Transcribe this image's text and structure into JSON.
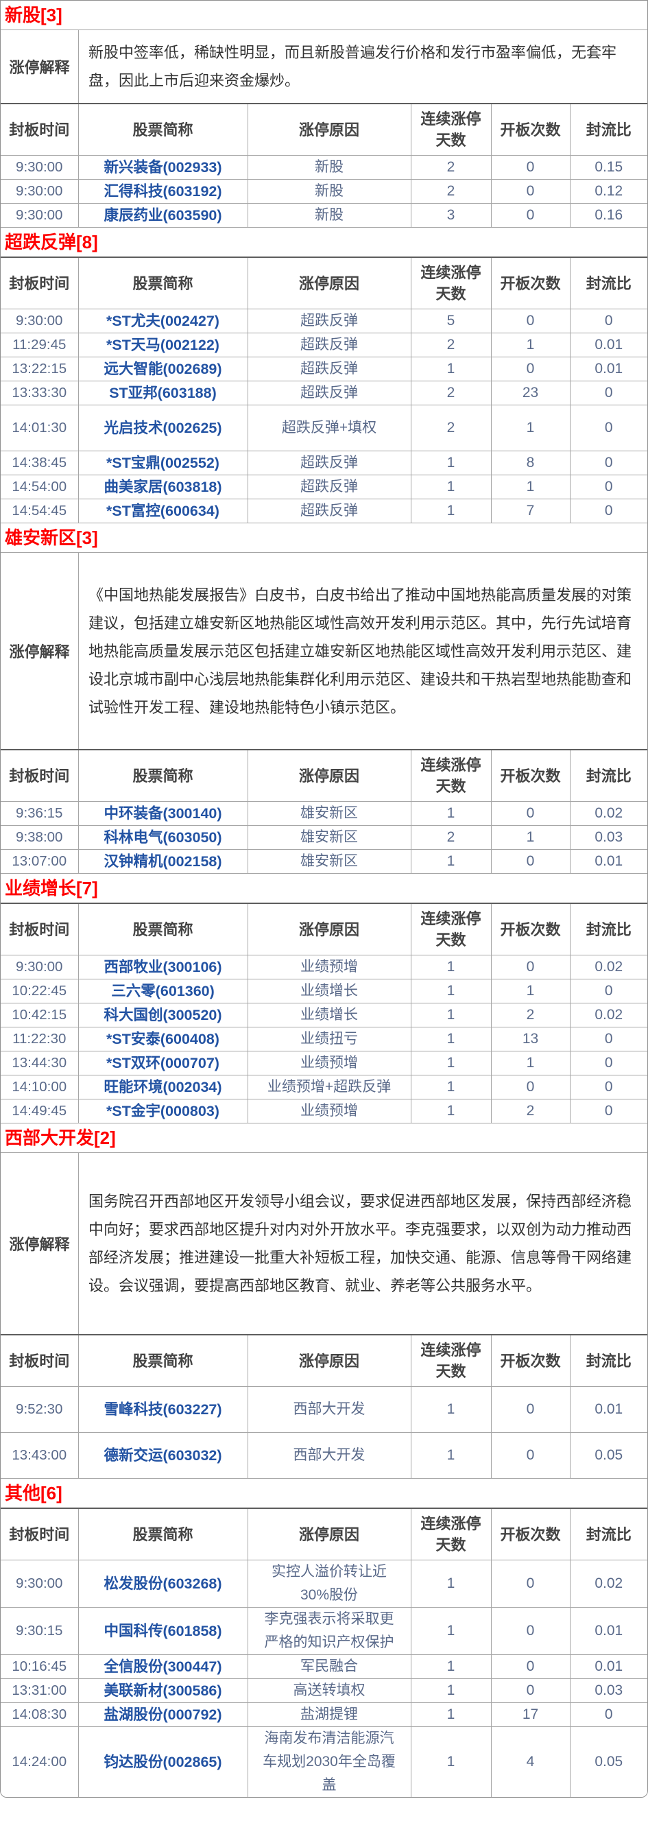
{
  "table": {
    "explanation_label": "涨停解释",
    "columns": [
      "封板时间",
      "股票简称",
      "涨停原因",
      "连续涨停天数",
      "开板次数",
      "封流比"
    ]
  },
  "colors": {
    "section_title_red": "#fe0000",
    "stock_link_blue": "#2353a3",
    "data_text_slate": "#5a6a8a",
    "header_text_gray": "#444444",
    "grid_line_gray": "#a6a6a6"
  },
  "sections": [
    {
      "title": "新股[3]",
      "explanation": "新股中签率低，稀缺性明显，而且新股普遍发行价格和发行市盈率偏低，无套牢盘，因此上市后迎来资金爆炒。",
      "rows": [
        {
          "time": "9:30:00",
          "stock": "新兴装备(002933)",
          "reason": "新股",
          "days": "2",
          "opens": "0",
          "ratio": "0.15"
        },
        {
          "time": "9:30:00",
          "stock": "汇得科技(603192)",
          "reason": "新股",
          "days": "2",
          "opens": "0",
          "ratio": "0.12"
        },
        {
          "time": "9:30:00",
          "stock": "康辰药业(603590)",
          "reason": "新股",
          "days": "3",
          "opens": "0",
          "ratio": "0.16"
        }
      ]
    },
    {
      "title": "超跌反弹[8]",
      "explanation": "",
      "rows": [
        {
          "time": "9:30:00",
          "stock": "*ST尤夫(002427)",
          "reason": "超跌反弹",
          "days": "5",
          "opens": "0",
          "ratio": "0"
        },
        {
          "time": "11:29:45",
          "stock": "*ST天马(002122)",
          "reason": "超跌反弹",
          "days": "2",
          "opens": "1",
          "ratio": "0.01"
        },
        {
          "time": "13:22:15",
          "stock": "远大智能(002689)",
          "reason": "超跌反弹",
          "days": "1",
          "opens": "0",
          "ratio": "0.01"
        },
        {
          "time": "13:33:30",
          "stock": "ST亚邦(603188)",
          "reason": "超跌反弹",
          "days": "2",
          "opens": "23",
          "ratio": "0"
        },
        {
          "time": "14:01:30",
          "stock": "光启技术(002625)",
          "reason": "超跌反弹+填权",
          "days": "2",
          "opens": "1",
          "ratio": "0"
        },
        {
          "time": "14:38:45",
          "stock": "*ST宝鼎(002552)",
          "reason": "超跌反弹",
          "days": "1",
          "opens": "8",
          "ratio": "0"
        },
        {
          "time": "14:54:00",
          "stock": "曲美家居(603818)",
          "reason": "超跌反弹",
          "days": "1",
          "opens": "1",
          "ratio": "0"
        },
        {
          "time": "14:54:45",
          "stock": "*ST富控(600634)",
          "reason": "超跌反弹",
          "days": "1",
          "opens": "7",
          "ratio": "0"
        }
      ]
    },
    {
      "title": "雄安新区[3]",
      "explanation": "《中国地热能发展报告》白皮书，白皮书给出了推动中国地热能高质量发展的对策建议，包括建立雄安新区地热能区域性高效开发利用示范区。其中，先行先试培育地热能高质量发展示范区包括建立雄安新区地热能区域性高效开发利用示范区、建设北京城市副中心浅层地热能集群化利用示范区、建设共和干热岩型地热能勘查和试验性开发工程、建设地热能特色小镇示范区。",
      "rows": [
        {
          "time": "9:36:15",
          "stock": "中环装备(300140)",
          "reason": "雄安新区",
          "days": "1",
          "opens": "0",
          "ratio": "0.02"
        },
        {
          "time": "9:38:00",
          "stock": "科林电气(603050)",
          "reason": "雄安新区",
          "days": "2",
          "opens": "1",
          "ratio": "0.03"
        },
        {
          "time": "13:07:00",
          "stock": "汉钟精机(002158)",
          "reason": "雄安新区",
          "days": "1",
          "opens": "0",
          "ratio": "0.01"
        }
      ]
    },
    {
      "title": "业绩增长[7]",
      "explanation": "",
      "rows": [
        {
          "time": "9:30:00",
          "stock": "西部牧业(300106)",
          "reason": "业绩预增",
          "days": "1",
          "opens": "0",
          "ratio": "0.02"
        },
        {
          "time": "10:22:45",
          "stock": "三六零(601360)",
          "reason": "业绩增长",
          "days": "1",
          "opens": "1",
          "ratio": "0"
        },
        {
          "time": "10:42:15",
          "stock": "科大国创(300520)",
          "reason": "业绩增长",
          "days": "1",
          "opens": "2",
          "ratio": "0.02"
        },
        {
          "time": "11:22:30",
          "stock": "*ST安泰(600408)",
          "reason": "业绩扭亏",
          "days": "1",
          "opens": "13",
          "ratio": "0"
        },
        {
          "time": "13:44:30",
          "stock": "*ST双环(000707)",
          "reason": "业绩预增",
          "days": "1",
          "opens": "1",
          "ratio": "0"
        },
        {
          "time": "14:10:00",
          "stock": "旺能环境(002034)",
          "reason": "业绩预增+超跌反弹",
          "days": "1",
          "opens": "0",
          "ratio": "0"
        },
        {
          "time": "14:49:45",
          "stock": "*ST金宇(000803)",
          "reason": "业绩预增",
          "days": "1",
          "opens": "2",
          "ratio": "0"
        }
      ]
    },
    {
      "title": "西部大开发[2]",
      "explanation": "国务院召开西部地区开发领导小组会议，要求促进西部地区发展，保持西部经济稳中向好；要求西部地区提升对内对外开放水平。李克强要求，以双创为动力推动西部经济发展；推进建设一批重大补短板工程，加快交通、能源、信息等骨干网络建设。会议强调，要提高西部地区教育、就业、养老等公共服务水平。",
      "rows": [
        {
          "time": "9:52:30",
          "stock": "雪峰科技(603227)",
          "reason": "西部大开发",
          "days": "1",
          "opens": "0",
          "ratio": "0.01"
        },
        {
          "time": "13:43:00",
          "stock": "德新交运(603032)",
          "reason": "西部大开发",
          "days": "1",
          "opens": "0",
          "ratio": "0.05"
        }
      ]
    },
    {
      "title": "其他[6]",
      "explanation": "",
      "rows": [
        {
          "time": "9:30:00",
          "stock": "松发股份(603268)",
          "reason": "实控人溢价转让近30%股份",
          "days": "1",
          "opens": "0",
          "ratio": "0.02"
        },
        {
          "time": "9:30:15",
          "stock": "中国科传(601858)",
          "reason": "李克强表示将采取更严格的知识产权保护",
          "days": "1",
          "opens": "0",
          "ratio": "0.01"
        },
        {
          "time": "10:16:45",
          "stock": "全信股份(300447)",
          "reason": "军民融合",
          "days": "1",
          "opens": "0",
          "ratio": "0.01"
        },
        {
          "time": "13:31:00",
          "stock": "美联新材(300586)",
          "reason": "高送转填权",
          "days": "1",
          "opens": "0",
          "ratio": "0.03"
        },
        {
          "time": "14:08:30",
          "stock": "盐湖股份(000792)",
          "reason": "盐湖提锂",
          "days": "1",
          "opens": "17",
          "ratio": "0"
        },
        {
          "time": "14:24:00",
          "stock": "钧达股份(002865)",
          "reason": "海南发布清洁能源汽车规划2030年全岛覆盖",
          "days": "1",
          "opens": "4",
          "ratio": "0.05"
        }
      ]
    }
  ]
}
